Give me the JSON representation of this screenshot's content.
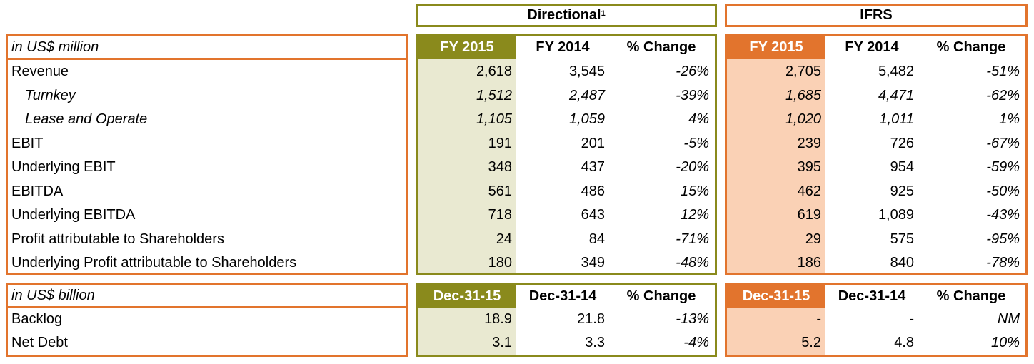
{
  "headers": {
    "directional": "Directional",
    "directional_sup": "1",
    "ifrs": "IFRS"
  },
  "section1": {
    "unit_label": "in US$ million",
    "directional_cols": [
      "FY 2015",
      "FY 2014",
      "% Change"
    ],
    "ifrs_cols": [
      "FY 2015",
      "FY 2014",
      "% Change"
    ],
    "rows": [
      {
        "label": "Revenue",
        "style": "normal",
        "d": [
          "2,618",
          "3,545",
          "-26%"
        ],
        "i": [
          "2,705",
          "5,482",
          "-51%"
        ]
      },
      {
        "label": "Turnkey",
        "style": "indent",
        "d": [
          "1,512",
          "2,487",
          "-39%"
        ],
        "i": [
          "1,685",
          "4,471",
          "-62%"
        ]
      },
      {
        "label": "Lease and Operate",
        "style": "indent",
        "d": [
          "1,105",
          "1,059",
          "4%"
        ],
        "i": [
          "1,020",
          "1,011",
          "1%"
        ]
      },
      {
        "label": "EBIT",
        "style": "normal",
        "d": [
          "191",
          "201",
          "-5%"
        ],
        "i": [
          "239",
          "726",
          "-67%"
        ]
      },
      {
        "label": "Underlying EBIT",
        "style": "normal",
        "d": [
          "348",
          "437",
          "-20%"
        ],
        "i": [
          "395",
          "954",
          "-59%"
        ]
      },
      {
        "label": "EBITDA",
        "style": "normal",
        "d": [
          "561",
          "486",
          "15%"
        ],
        "i": [
          "462",
          "925",
          "-50%"
        ]
      },
      {
        "label": "Underlying EBITDA",
        "style": "normal",
        "d": [
          "718",
          "643",
          "12%"
        ],
        "i": [
          "619",
          "1,089",
          "-43%"
        ]
      },
      {
        "label": "Profit attributable to Shareholders",
        "style": "normal",
        "d": [
          "24",
          "84",
          "-71%"
        ],
        "i": [
          "29",
          "575",
          "-95%"
        ]
      },
      {
        "label": "Underlying Profit attributable to Shareholders",
        "style": "normal",
        "d": [
          "180",
          "349",
          "-48%"
        ],
        "i": [
          "186",
          "840",
          "-78%"
        ]
      }
    ]
  },
  "section2": {
    "unit_label": "in US$ billion",
    "directional_cols": [
      "Dec-31-15",
      "Dec-31-14",
      "% Change"
    ],
    "ifrs_cols": [
      "Dec-31-15",
      "Dec-31-14",
      "% Change"
    ],
    "rows": [
      {
        "label": "Backlog",
        "style": "normal",
        "d": [
          "18.9",
          "21.8",
          "-13%"
        ],
        "i": [
          "-",
          "-",
          "NM"
        ]
      },
      {
        "label": "Net Debt",
        "style": "normal",
        "d": [
          "3.1",
          "3.3",
          "-4%"
        ],
        "i": [
          "5.2",
          "4.8",
          "10%"
        ]
      }
    ]
  },
  "colors": {
    "olive": "#8a8a1c",
    "olive_light": "#e9e9d1",
    "orange": "#e2742d",
    "orange_light": "#fad1b5"
  }
}
